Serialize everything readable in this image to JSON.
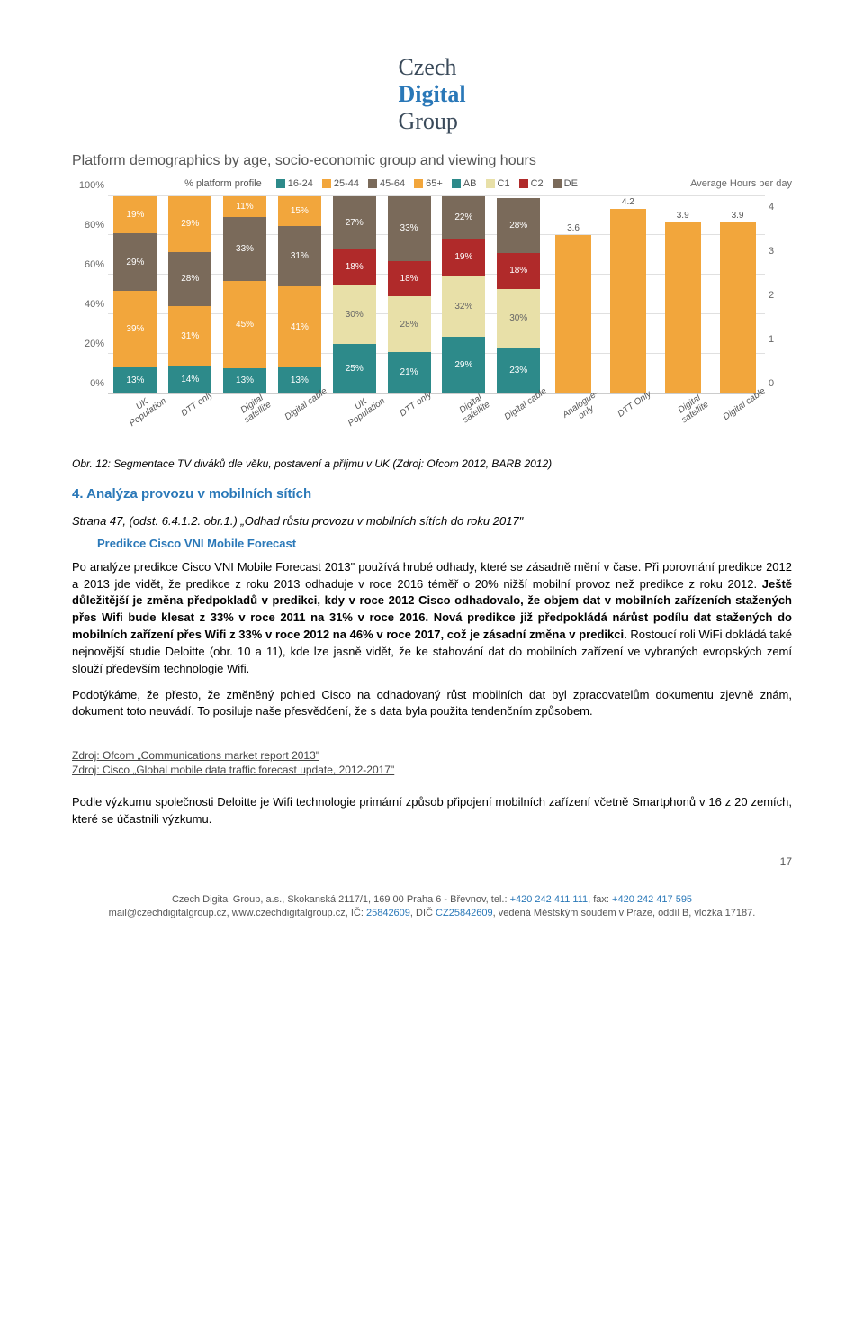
{
  "logo": {
    "line1": "Czech",
    "line2": "Digital",
    "line3": "Group"
  },
  "chart": {
    "title": "Platform demographics by age, socio-economic group and viewing hours",
    "left_header": "% platform profile",
    "right_header": "Average Hours per day",
    "legend": [
      {
        "label": "16-24",
        "color": "#2d8a8a"
      },
      {
        "label": "25-44",
        "color": "#f2a63c"
      },
      {
        "label": "45-64",
        "color": "#7a6a5a"
      },
      {
        "label": "65+",
        "color": "#f2a63c"
      },
      {
        "label": "AB",
        "color": "#2d8a8a"
      },
      {
        "label": "C1",
        "color": "#e8e0a8"
      },
      {
        "label": "C2",
        "color": "#b02a2a"
      },
      {
        "label": "DE",
        "color": "#7a6a5a"
      }
    ],
    "y_left": {
      "ticks": [
        "0%",
        "20%",
        "40%",
        "60%",
        "80%",
        "100%"
      ]
    },
    "y_right": {
      "ticks": [
        "0",
        "1",
        "2",
        "3",
        "4"
      ],
      "max": 4.5
    },
    "segment_colors_age": [
      "#2d8a8a",
      "#f2a63c",
      "#7a6a5a",
      "#f2a63c"
    ],
    "segment_colors_sec": [
      "#2d8a8a",
      "#e8e0a8",
      "#b02a2a",
      "#7a6a5a"
    ],
    "hours_color": "#f2a63c",
    "groups": [
      {
        "x": "UK Population",
        "type": "age",
        "vals": [
          13,
          39,
          29,
          19
        ],
        "labels": [
          "13%",
          "39%",
          "29%",
          "19%"
        ]
      },
      {
        "x": "DTT only",
        "type": "age",
        "vals": [
          14,
          31,
          28,
          29
        ],
        "labels": [
          "14%",
          "31%",
          "28%",
          "29%"
        ]
      },
      {
        "x": "Digital satellite",
        "type": "age",
        "vals": [
          13,
          45,
          33,
          11
        ],
        "labels": [
          "13%",
          "45%",
          "33%",
          "11%"
        ]
      },
      {
        "x": "Digital cable",
        "type": "age",
        "vals": [
          13,
          41,
          31,
          15
        ],
        "labels": [
          "13%",
          "41%",
          "31%",
          "15%"
        ]
      },
      {
        "x": "UK Population",
        "type": "sec",
        "vals": [
          25,
          30,
          18,
          27
        ],
        "labels": [
          "25%",
          "30%",
          "18%",
          "27%"
        ]
      },
      {
        "x": "DTT only",
        "type": "sec",
        "vals": [
          21,
          28,
          18,
          33
        ],
        "labels": [
          "21%",
          "28%",
          "18%",
          "33%"
        ]
      },
      {
        "x": "Digital satellite",
        "type": "sec",
        "vals": [
          29,
          32,
          19,
          22
        ],
        "labels": [
          "29%",
          "32%",
          "19%",
          "22%"
        ]
      },
      {
        "x": "Digital cable",
        "type": "sec",
        "vals": [
          23,
          30,
          18,
          28
        ],
        "labels": [
          "23%",
          "30%",
          "18%",
          "28%"
        ]
      },
      {
        "x": "Analogue-only",
        "type": "hrs",
        "val": 3.6,
        "label": "3.6"
      },
      {
        "x": "DTT Only",
        "type": "hrs",
        "val": 4.2,
        "label": "4.2"
      },
      {
        "x": "Digital satellite",
        "type": "hrs",
        "val": 3.9,
        "label": "3.9"
      },
      {
        "x": "Digital cable",
        "type": "hrs",
        "val": 3.9,
        "label": "3.9"
      }
    ]
  },
  "caption": "Obr. 12: Segmentace TV diváků dle věku, postavení a příjmu v UK (Zdroj: Ofcom 2012, BARB 2012)",
  "h4": "4.   Analýza provozu v mobilních sítích",
  "ref": "Strana 47, (odst. 6.4.1.2. obr.1.) „Odhad růstu provozu v mobilních sítích do roku 2017\"",
  "subhead": "Predikce Cisco VNI Mobile Forecast",
  "p1a": "Po analýze predikce Cisco VNI Mobile Forecast 2013\" používá  hrubé odhady, které se zásadně mění v čase. Při porovnání predikce 2012 a 2013 jde vidět, že predikce z roku 2013 odhaduje v roce 2016 téměř o 20% nižší mobilní provoz než predikce z roku 2012. ",
  "p1b": "Ještě důležitější je změna předpokladů v predikci, kdy v roce 2012 Cisco odhadovalo, že objem dat v mobilních zařízeních stažených přes Wifi bude klesat z 33% v roce 2011 na 31% v roce 2016. Nová predikce již předpokládá nárůst podílu dat stažených do mobilních zařízení přes Wifi z 33% v roce 2012 na 46% v roce 2017, což je zásadní změna v predikci.",
  "p1c": " Rostoucí roli WiFi dokládá také  nejnovější studie  Deloitte (obr. 10 a 11), kde lze jasně vidět, že ke stahování dat do mobilních zařízení ve vybraných evropských zemí slouží především technologie Wifi.",
  "p2": "Podotýkáme, že přesto, že změněný pohled Cisco na odhadovaný růst mobilních dat byl zpracovatelům dokumentu zjevně znám, dokument toto neuvádí. To posiluje naše přesvědčení, že s data byla použita tendenčním způsobem.",
  "src1": "Zdroj: Ofcom „Communications market report 2013\"",
  "src2": "Zdroj: Cisco „Global mobile data traffic forecast update, 2012-2017\"",
  "p3": "Podle výzkumu společnosti Deloitte je Wifi technologie primární způsob připojení mobilních zařízení včetně Smartphonů v 16 z 20 zemích, které se účastnili výzkumu.",
  "page_num": "17",
  "footer": {
    "l1a": "Czech Digital Group, a.s., Skokanská 2117/1, 169 00 Praha 6 - Břevnov, tel.: ",
    "l1b": "+420 242 411 111",
    "l1c": ", fax: ",
    "l1d": "+420 242 417 595",
    "l2a": "mail@czechdigitalgroup.cz, www.czechdigitalgroup.cz, IČ: ",
    "l2b": "25842609",
    "l2c": ", DIČ ",
    "l2d": "CZ25842609",
    "l2e": ", vedená Městským soudem v Praze, oddíl B, vložka 17187."
  }
}
